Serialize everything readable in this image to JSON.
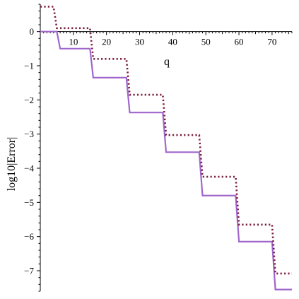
{
  "chart_data": {
    "type": "line",
    "xlabel": "q",
    "ylabel": "log10|Error|",
    "xlim": [
      0,
      76
    ],
    "ylim": [
      -7.6,
      0.8
    ],
    "x_ticks": [
      10,
      20,
      30,
      40,
      50,
      60,
      70
    ],
    "y_ticks": [
      0,
      -1,
      -2,
      -3,
      -4,
      -5,
      -6,
      -7
    ],
    "grid": false,
    "series": [
      {
        "color": "#a066cc",
        "style": "solid",
        "points": [
          [
            0,
            0
          ],
          [
            5,
            0
          ],
          [
            6,
            -0.5
          ],
          [
            15,
            -0.5
          ],
          [
            16,
            -1.35
          ],
          [
            26,
            -1.35
          ],
          [
            27,
            -2.37
          ],
          [
            37,
            -2.37
          ],
          [
            38,
            -3.53
          ],
          [
            48,
            -3.53
          ],
          [
            49,
            -4.8
          ],
          [
            59,
            -4.8
          ],
          [
            60,
            -6.15
          ],
          [
            70,
            -6.15
          ],
          [
            71,
            -7.55
          ],
          [
            76,
            -7.55
          ]
        ]
      },
      {
        "color": "#7a1f3d",
        "style": "dotted",
        "points": [
          [
            0,
            0.73
          ],
          [
            4,
            0.73
          ],
          [
            5,
            0.1
          ],
          [
            15,
            0.1
          ],
          [
            16,
            -0.8
          ],
          [
            26,
            -0.8
          ],
          [
            27,
            -1.85
          ],
          [
            37,
            -1.85
          ],
          [
            38,
            -3.03
          ],
          [
            48,
            -3.03
          ],
          [
            49,
            -4.25
          ],
          [
            59,
            -4.25
          ],
          [
            60,
            -5.65
          ],
          [
            70,
            -5.65
          ],
          [
            71,
            -7.08
          ],
          [
            76,
            -7.08
          ]
        ]
      }
    ]
  }
}
